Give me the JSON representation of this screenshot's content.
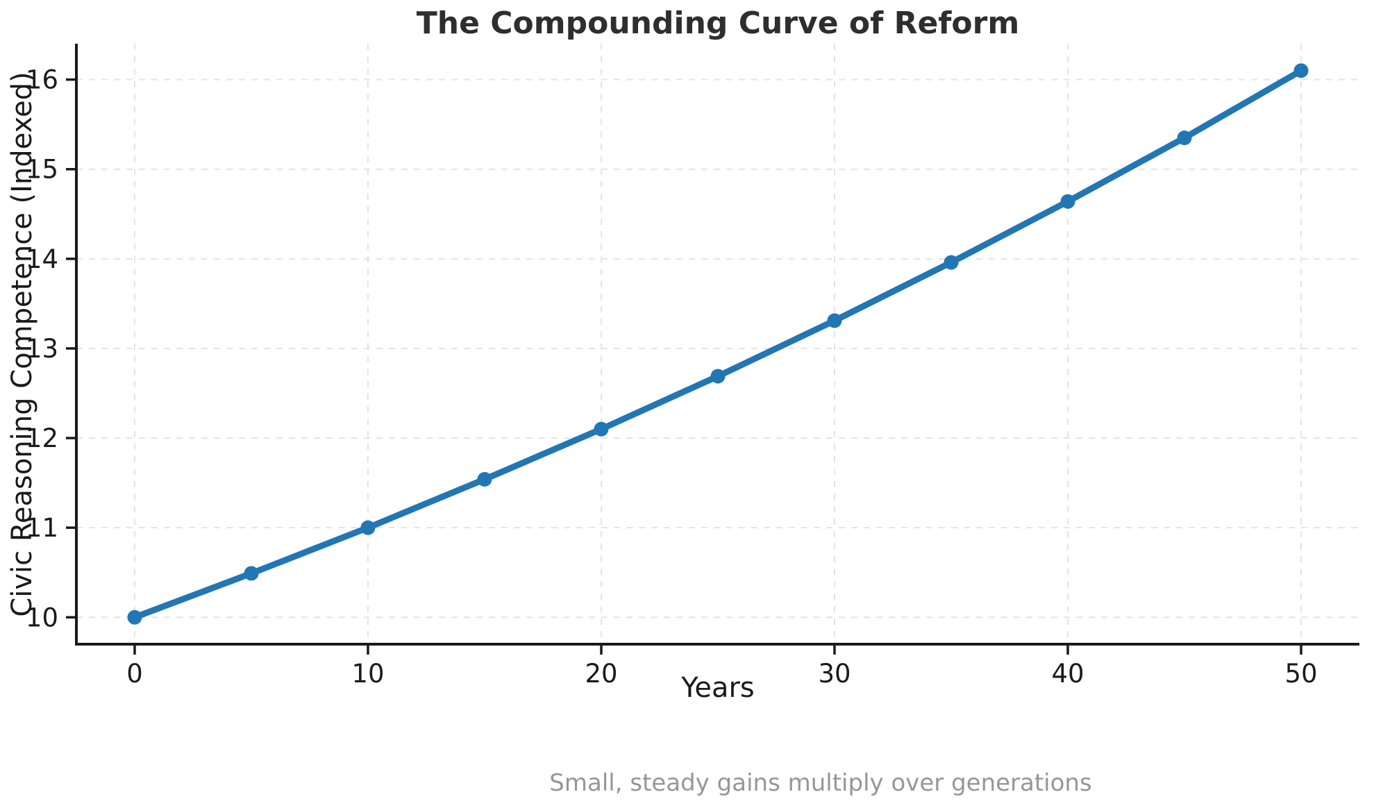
{
  "title": "The Compounding Curve of Reform",
  "caption": "Small, steady gains multiply over generations",
  "chart_data": {
    "type": "line",
    "title": "The Compounding Curve of Reform",
    "xlabel": "Years",
    "ylabel": "Civic Reasoning Competence (Indexed)",
    "x": [
      0,
      5,
      10,
      15,
      20,
      25,
      30,
      35,
      40,
      45,
      50
    ],
    "values": [
      10.0,
      10.49,
      11.0,
      11.54,
      12.1,
      12.69,
      13.31,
      13.96,
      14.64,
      15.35,
      16.1
    ],
    "series_name": "Civic Reasoning Competence (Indexed)",
    "xticks": [
      0,
      10,
      20,
      30,
      40,
      50
    ],
    "yticks": [
      10,
      11,
      12,
      13,
      14,
      15,
      16
    ],
    "xlim": [
      -2.5,
      52.5
    ],
    "ylim": [
      9.7,
      16.4
    ],
    "grid": true,
    "grid_style": "dashed",
    "legend_position": "none",
    "annotation": "Small, steady gains multiply over generations",
    "colors": {
      "line": "#2276b4",
      "marker": "#2276b4",
      "grid": "#e4e4e4",
      "axis": "#1a1a1a",
      "tick_label": "#1a1a1a",
      "title": "#2e2e2e",
      "caption": "#969696",
      "background": "#ffffff"
    }
  }
}
